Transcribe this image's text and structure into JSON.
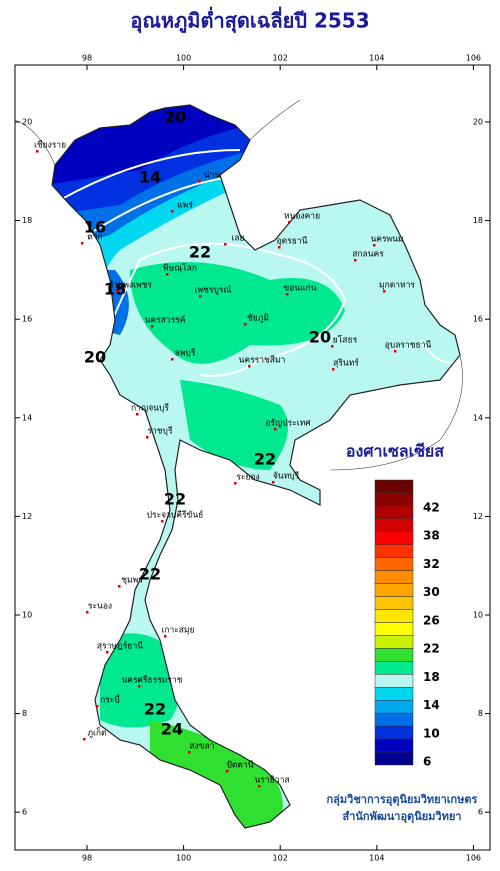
{
  "title": "อุณหภูมิต่ำสุดเฉลี่ยปี 2553",
  "map": {
    "lon_ticks": [
      98,
      100,
      102,
      104,
      106
    ],
    "lat_ticks": [
      20,
      18,
      16,
      14,
      12,
      10,
      8,
      6
    ],
    "contour_labels": [
      "20",
      "14",
      "16",
      "18",
      "20",
      "22",
      "20",
      "22",
      "22",
      "22",
      "22",
      "24"
    ],
    "places": [
      "เชียงราย",
      "น่าน",
      "แพร่",
      "ตาก",
      "เลย",
      "หนองคาย",
      "อุดรธานี",
      "นครพนม",
      "สกลนคร",
      "มุกดาหาร",
      "พิษณุโลก",
      "กำแพงเพชร",
      "เพชรบูรณ์",
      "ขอนแก่น",
      "นครสวรรค์",
      "ชัยภูมิ",
      "ยโสธร",
      "อุบลราชธานี",
      "ลพบุรี",
      "นครราชสีมา",
      "สุรินทร์",
      "กาญจนบุรี",
      "ราชบุรี",
      "อรัญประเทศ",
      "ระยอง",
      "จันทบุรี",
      "ประจวบคีรีขันธ์",
      "ชุมพร",
      "ระนอง",
      "เกาะสมุย",
      "สุราษฎร์ธานี",
      "นครศรีธรรมราช",
      "กระบี่",
      "ภูเก็ต",
      "สงขลา",
      "ปัตตานี",
      "นราธิวาส"
    ]
  },
  "legend": {
    "title": "องศาเซลเซียส",
    "labels": [
      42,
      38,
      32,
      30,
      26,
      22,
      18,
      14,
      10,
      6
    ],
    "colors": [
      "#6b0000",
      "#8b0000",
      "#b00000",
      "#d40000",
      "#ff0000",
      "#ff3300",
      "#ff6600",
      "#ff8c00",
      "#ffa500",
      "#ffc400",
      "#ffe600",
      "#ffff00",
      "#c8f000",
      "#30e030",
      "#00e890",
      "#b8f8f0",
      "#00d8f0",
      "#00a8f0",
      "#0070e8",
      "#0030e0",
      "#0000c0",
      "#000090"
    ]
  },
  "credits": [
    "กลุ่มวิชาการอุตุนิยมวิทยาเกษตร",
    "สำนักพัฒนาอุตุนิยมวิทยา"
  ]
}
